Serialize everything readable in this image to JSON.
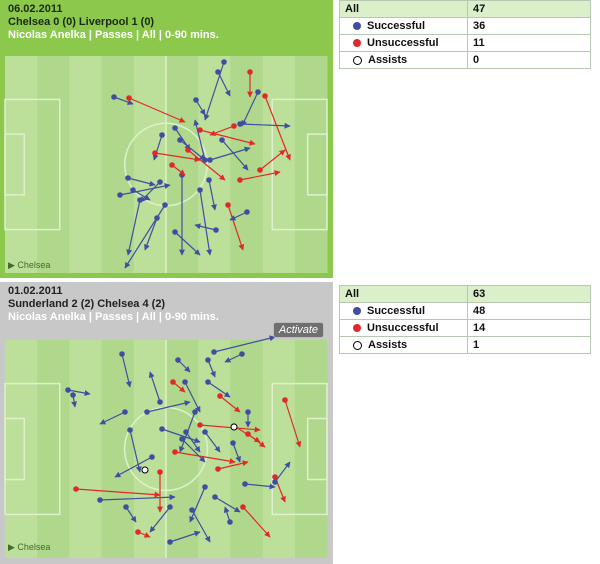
{
  "match1": {
    "date": "06.02.2011",
    "fixture": "Chelsea 0 (0) Liverpool 1 (0)",
    "subtitle": "Nicolas Anelka | Passes | All | 0-90 mins.",
    "team_label": "▶ Chelsea",
    "stats": [
      {
        "label": "All",
        "value": "47",
        "marker": ""
      },
      {
        "label": "Successful",
        "value": "36",
        "marker": "blue"
      },
      {
        "label": "Unsuccessful",
        "value": "11",
        "marker": "red"
      },
      {
        "label": "Assists",
        "value": "0",
        "marker": "white"
      }
    ]
  },
  "match2": {
    "date": "01.02.2011",
    "fixture": "Sunderland 2 (2) Chelsea 4 (2)",
    "subtitle": "Nicolas Anelka | Passes | All | 0-90 mins.",
    "activate_label": "Activate",
    "team_label": "▶ Chelsea",
    "stats": [
      {
        "label": "All",
        "value": "63",
        "marker": ""
      },
      {
        "label": "Successful",
        "value": "48",
        "marker": "blue"
      },
      {
        "label": "Unsuccessful",
        "value": "14",
        "marker": "red"
      },
      {
        "label": "Assists",
        "value": "1",
        "marker": "white"
      }
    ]
  },
  "colors": {
    "successful": "#3f4ea0",
    "unsuccessful": "#e02a2a",
    "assist": "#ffffff",
    "pitch_light": "#bcdf9a",
    "pitch_dark": "#b0d88c",
    "pitch_line": "#dff0cc",
    "panel1_bg": "#8cc84b",
    "panel2_bg": "#c8c8c8"
  }
}
